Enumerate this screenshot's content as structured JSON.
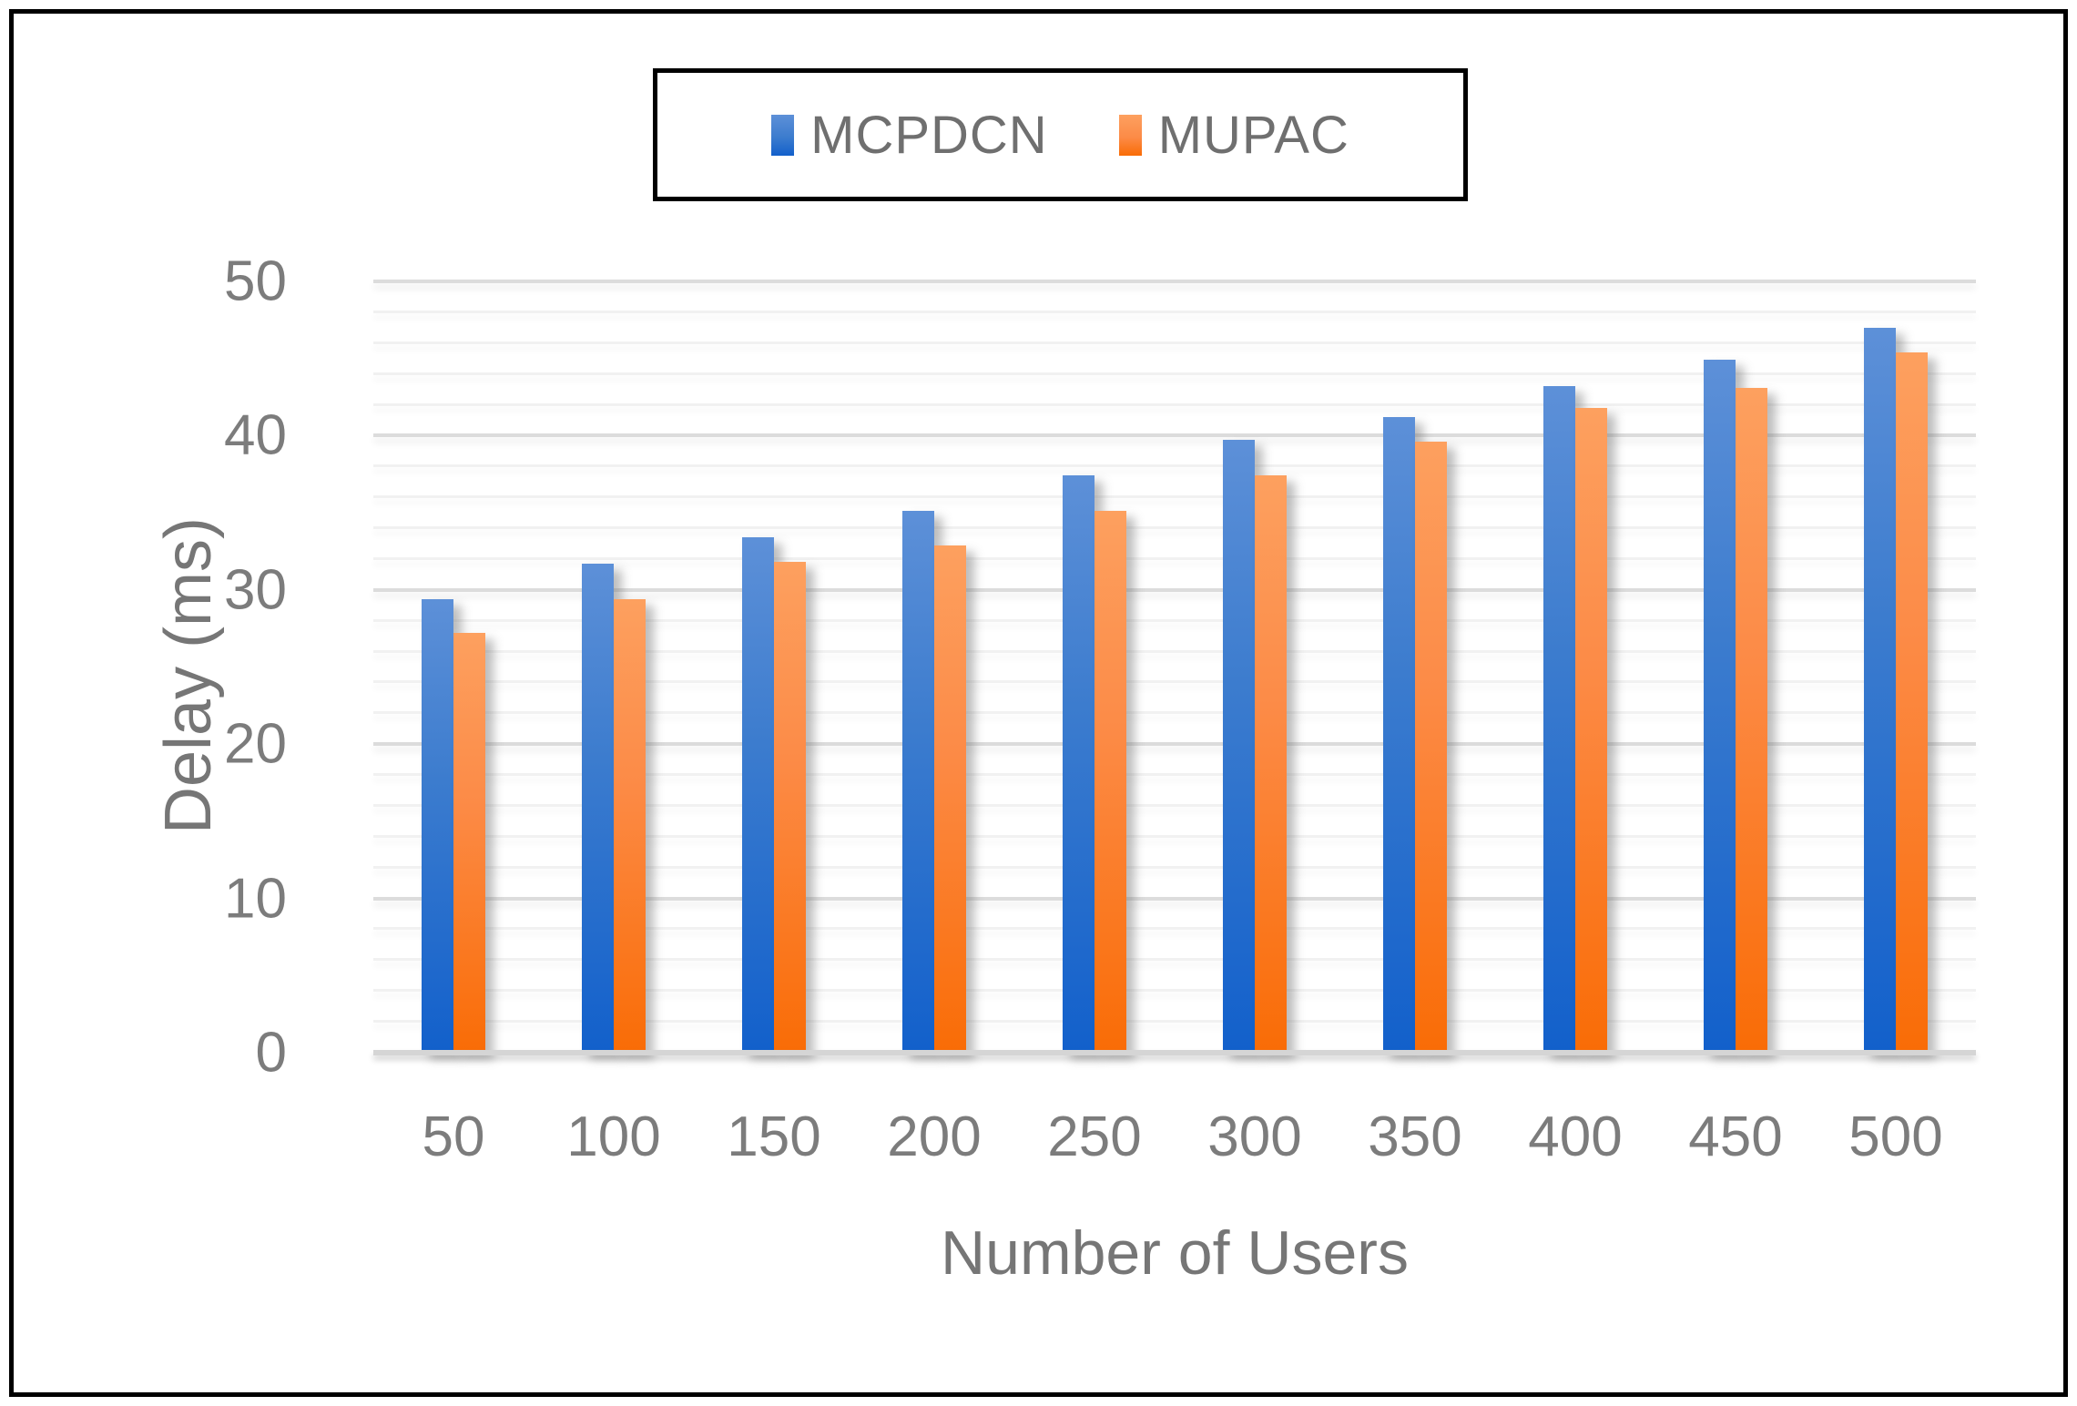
{
  "figure": {
    "background": "#ffffff",
    "border_color": "#000000"
  },
  "legend": {
    "items": [
      {
        "label": "MCPDCN",
        "color": "#2f74cd"
      },
      {
        "label": "MUPAC",
        "color": "#fb8a45"
      }
    ]
  },
  "chart_data": {
    "type": "bar",
    "title": "",
    "categories": [
      "50",
      "100",
      "150",
      "200",
      "250",
      "300",
      "350",
      "400",
      "450",
      "500"
    ],
    "series": [
      {
        "name": "MCPDCN",
        "color": "#2f74cd",
        "values": [
          29.4,
          31.7,
          33.4,
          35.1,
          37.4,
          39.7,
          41.2,
          43.2,
          44.9,
          47.0
        ]
      },
      {
        "name": "MUPAC",
        "color": "#fb8a45",
        "values": [
          27.2,
          29.4,
          31.8,
          32.9,
          35.1,
          37.4,
          39.6,
          41.8,
          43.1,
          45.4
        ]
      }
    ],
    "xlabel": "Number of Users",
    "ylabel": "Delay (ms)",
    "ylim": [
      0,
      50
    ],
    "y_ticks": [
      0,
      10,
      20,
      30,
      40,
      50
    ],
    "minor_grid_step": 2,
    "major_grid_step": 10,
    "grid": true,
    "legend_position": "top-center",
    "bar_colors": {
      "MCPDCN": "#2f74cd",
      "MUPAC": "#fb8a45"
    },
    "gridline_color_minor": "#f1f1f1",
    "gridline_color_major": "#dcdcdc",
    "axis_text_color": "#7c7c7c"
  }
}
